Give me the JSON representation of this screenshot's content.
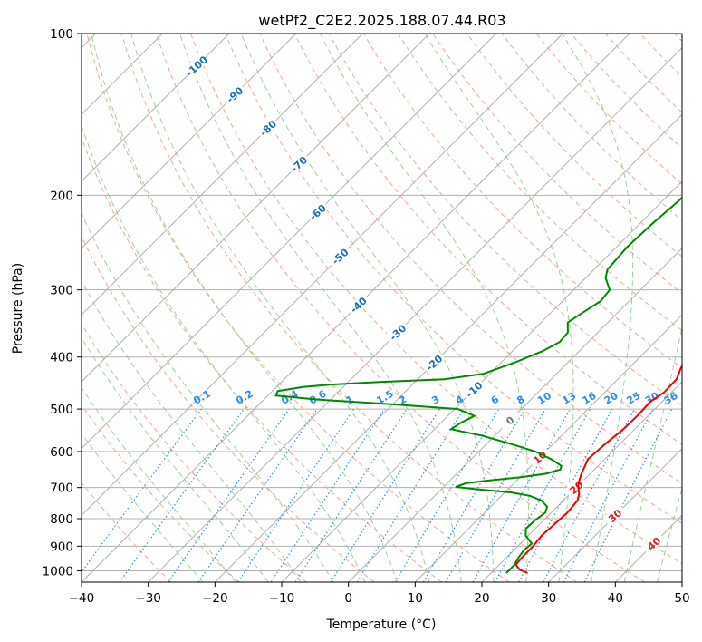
{
  "chart_data": {
    "type": "line",
    "subtype": "skew-t log-p diagram",
    "title": "wetPf2_C2E2.2025.188.07.44.R03",
    "xlabel": "Temperature (°C)",
    "ylabel": "Pressure (hPa)",
    "xlim": [
      -40,
      50
    ],
    "ylim": [
      1050,
      100
    ],
    "yscale": "log",
    "x_ticks": [
      -40,
      -30,
      -20,
      -10,
      0,
      10,
      20,
      30,
      40,
      50
    ],
    "y_ticks": [
      100,
      200,
      300,
      400,
      500,
      600,
      700,
      800,
      900,
      1000
    ],
    "grid": true,
    "series": [
      {
        "color": "#ee0000",
        "points": [
          [
            25.5,
            1010
          ],
          [
            23.8,
            995
          ],
          [
            22.5,
            975
          ],
          [
            22.3,
            945
          ],
          [
            22.3,
            900
          ],
          [
            22.0,
            860
          ],
          [
            22.2,
            820
          ],
          [
            22.4,
            780
          ],
          [
            22.1,
            740
          ],
          [
            21.4,
            720
          ],
          [
            20.0,
            695
          ],
          [
            19.4,
            680
          ],
          [
            18.7,
            660
          ],
          [
            17.5,
            620
          ],
          [
            17.8,
            580
          ],
          [
            18.3,
            545
          ],
          [
            18.4,
            510
          ],
          [
            18.2,
            485
          ],
          [
            18.9,
            465
          ],
          [
            18.8,
            440
          ],
          [
            17.8,
            420
          ],
          [
            16.6,
            390
          ],
          [
            16.0,
            370
          ],
          [
            15.3,
            350
          ],
          [
            13.8,
            320
          ],
          [
            12.2,
            295
          ],
          [
            10.0,
            265
          ],
          [
            7.7,
            235
          ],
          [
            5.4,
            205
          ],
          [
            3.7,
            180
          ],
          [
            3.2,
            165
          ],
          [
            1.6,
            145
          ],
          [
            0.3,
            130
          ],
          [
            -0.8,
            118
          ],
          [
            -2.6,
            108
          ],
          [
            -4.0,
            100
          ]
        ]
      },
      {
        "color": "#008800",
        "points": [
          [
            22.3,
            1010
          ],
          [
            22.3,
            975
          ],
          [
            21.8,
            945
          ],
          [
            21.5,
            915
          ],
          [
            21.7,
            890
          ],
          [
            19.6,
            860
          ],
          [
            18.6,
            835
          ],
          [
            18.7,
            805
          ],
          [
            19.1,
            780
          ],
          [
            18.5,
            760
          ],
          [
            16.7,
            740
          ],
          [
            14.2,
            725
          ],
          [
            11.0,
            715
          ],
          [
            5.3,
            705
          ],
          [
            1.8,
            698
          ],
          [
            2.8,
            687
          ],
          [
            6.2,
            678
          ],
          [
            10.0,
            670
          ],
          [
            13.3,
            660
          ],
          [
            14.9,
            648
          ],
          [
            14.5,
            638
          ],
          [
            12.0,
            620
          ],
          [
            8.5,
            600
          ],
          [
            3.5,
            580
          ],
          [
            -2.0,
            560
          ],
          [
            -7.5,
            545
          ],
          [
            -7.0,
            530
          ],
          [
            -6.0,
            515
          ],
          [
            -9.5,
            500
          ],
          [
            -20.0,
            490
          ],
          [
            -32.0,
            480
          ],
          [
            -38.8,
            472
          ],
          [
            -39.2,
            463
          ],
          [
            -36.0,
            455
          ],
          [
            -32.0,
            450
          ],
          [
            -25.0,
            445
          ],
          [
            -16.0,
            440
          ],
          [
            -11.0,
            430
          ],
          [
            -8.0,
            410
          ],
          [
            -5.5,
            390
          ],
          [
            -4.3,
            375
          ],
          [
            -4.5,
            360
          ],
          [
            -6.0,
            345
          ],
          [
            -5.2,
            330
          ],
          [
            -4.3,
            315
          ],
          [
            -4.6,
            300
          ],
          [
            -7.0,
            285
          ],
          [
            -8.0,
            275
          ],
          [
            -8.4,
            250
          ],
          [
            -8.1,
            225
          ],
          [
            -7.6,
            205
          ],
          [
            -7.5,
            190
          ],
          [
            -7.9,
            175
          ],
          [
            -7.4,
            165
          ],
          [
            -5.6,
            158
          ],
          [
            -3.8,
            150
          ],
          [
            -2.5,
            140
          ],
          [
            -1.6,
            130
          ],
          [
            -0.2,
            122
          ],
          [
            -0.6,
            115
          ],
          [
            0.0,
            108
          ],
          [
            0.1,
            103
          ],
          [
            0.3,
            100
          ]
        ]
      }
    ],
    "mixing_ratio_labels": [
      "0.1",
      "0.2",
      "0.4",
      "0.6",
      "1",
      "1.5",
      "2",
      "3",
      "4",
      "6",
      "8",
      "10",
      "13",
      "16",
      "20",
      "25",
      "30",
      "36"
    ],
    "isotherm_labels": [
      "-100",
      "-90",
      "-80",
      "-70",
      "-60",
      "-50",
      "-40",
      "-30",
      "-20",
      "-10",
      "0",
      "10",
      "20",
      "30",
      "40"
    ],
    "isotherm_label_colors": {
      "cold": "#1f6fa8",
      "zero": "#777777",
      "warm": "#d42020"
    },
    "mixing_label_color": "#2a8fe0"
  }
}
